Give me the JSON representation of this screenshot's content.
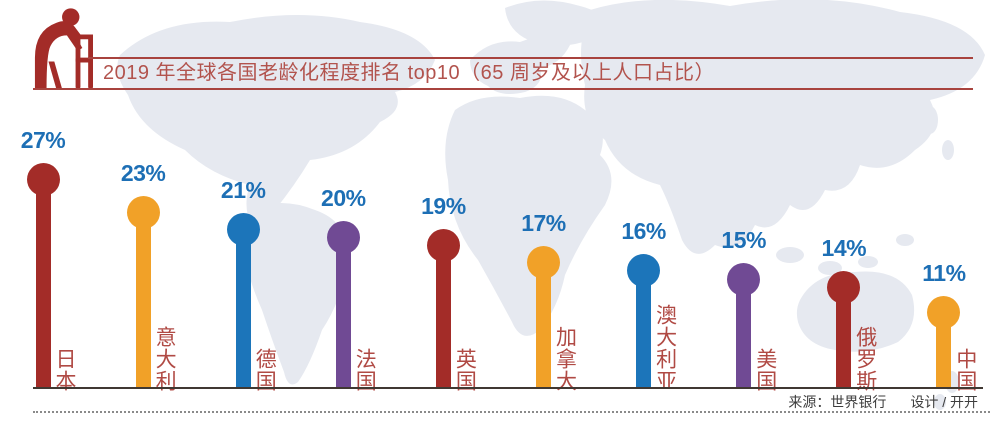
{
  "header": {
    "title": "2019 年全球各国老龄化程度排名 top10（65 周岁及以上人口占比）"
  },
  "footer": {
    "source_label": "来源：世界银行",
    "design_label": "设计 / 开开"
  },
  "colors": {
    "dark_red": "#A32C28",
    "orange": "#F1A128",
    "blue": "#1C75BA",
    "purple": "#704A94",
    "value_label_blue": "#1D6FB5",
    "country_label_red": "#B04A44",
    "title_red": "#B2534D",
    "rule_red": "#A8433E",
    "map_gray": "#E6E9F0",
    "axis_dark": "#403832"
  },
  "chart_data": {
    "type": "bar",
    "style": "lollipop",
    "title": "2019 年全球各国老龄化程度排名 top10（65 周岁及以上人口占比）",
    "categories": [
      "日本",
      "意大利",
      "德国",
      "法国",
      "英国",
      "加拿大",
      "澳大利亚",
      "美国",
      "俄罗斯",
      "中国"
    ],
    "values": [
      27,
      23,
      21,
      20,
      19,
      17,
      16,
      15,
      14,
      11
    ],
    "value_labels": [
      "27%",
      "23%",
      "21%",
      "20%",
      "19%",
      "17%",
      "16%",
      "15%",
      "14%",
      "11%"
    ],
    "bar_colors": [
      "#A32C28",
      "#F1A128",
      "#1C75BA",
      "#704A94",
      "#A32C28",
      "#F1A128",
      "#1C75BA",
      "#704A94",
      "#A32C28",
      "#F1A128"
    ],
    "xlabel": "",
    "ylabel": "",
    "ylim": [
      0,
      30
    ],
    "grid": false,
    "legend": false
  }
}
